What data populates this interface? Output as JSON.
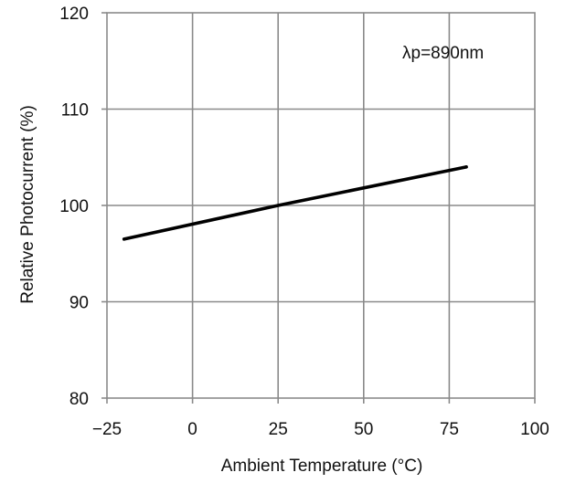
{
  "chart_data": {
    "type": "line",
    "title": "",
    "xlabel": "Ambient Temperature  (°C)",
    "ylabel": "Relative Photocurrent  (%)",
    "xlim": [
      -25,
      100
    ],
    "ylim": [
      80,
      120
    ],
    "x_ticks": [
      -25,
      0,
      25,
      50,
      75,
      100
    ],
    "x_tick_labels": [
      "−25",
      "0",
      "25",
      "50",
      "75",
      "100"
    ],
    "y_ticks": [
      80,
      90,
      100,
      110,
      120
    ],
    "y_tick_labels": [
      "80",
      "90",
      "100",
      "110",
      "120"
    ],
    "grid": true,
    "annotation": "λp=890nm",
    "series": [
      {
        "color": "#000000",
        "x": [
          -20,
          25,
          80
        ],
        "y": [
          96.5,
          100.0,
          104.0
        ]
      }
    ]
  }
}
